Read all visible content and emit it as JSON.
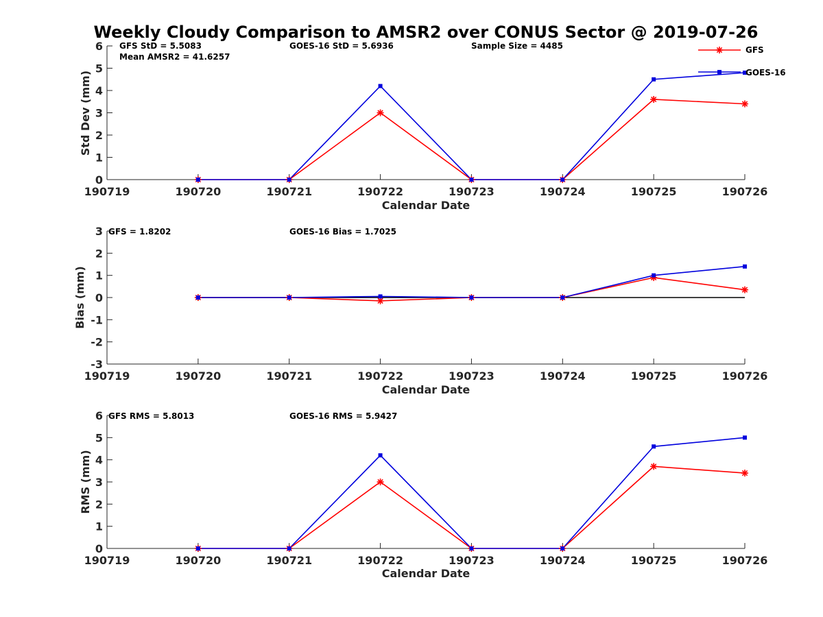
{
  "colors": {
    "gfs": "#ff0000",
    "goes": "#0000dd",
    "zero_line": "#000000",
    "axis": "#262626"
  },
  "chart_data": [
    {
      "type": "line",
      "title": "Weekly Cloudy Comparison to AMSR2 over CONUS Sector @ 2019-07-26",
      "xlabel": "Calendar Date",
      "ylabel": "Std Dev (mm)",
      "categories": [
        "190719",
        "190720",
        "190721",
        "190722",
        "190723",
        "190724",
        "190725",
        "190726"
      ],
      "ylim": [
        0,
        6
      ],
      "yticks": [
        "0",
        "1",
        "2",
        "3",
        "4",
        "5",
        "6"
      ],
      "series": [
        {
          "name": "GFS",
          "marker": "asterisk",
          "values": [
            null,
            0,
            0,
            3.0,
            0,
            0,
            3.6,
            3.4
          ]
        },
        {
          "name": "GOES-16",
          "marker": "square",
          "values": [
            null,
            0,
            0,
            4.2,
            0,
            0,
            4.5,
            4.8
          ]
        }
      ],
      "annotations": [
        "GFS StD = 5.5083",
        "Mean AMSR2 = 41.6257",
        "GOES-16 StD = 5.6936",
        "Sample Size = 4485"
      ],
      "legend": {
        "placement": "top-right",
        "entries": [
          "GFS",
          "GOES-16"
        ]
      }
    },
    {
      "type": "line",
      "xlabel": "Calendar Date",
      "ylabel": "Bias (mm)",
      "categories": [
        "190719",
        "190720",
        "190721",
        "190722",
        "190723",
        "190724",
        "190725",
        "190726"
      ],
      "ylim": [
        -3,
        3
      ],
      "yticks": [
        "-3",
        "-2",
        "-1",
        "0",
        "1",
        "2",
        "3"
      ],
      "zero_line": true,
      "series": [
        {
          "name": "GFS",
          "marker": "asterisk",
          "values": [
            null,
            0,
            0,
            -0.15,
            0,
            0,
            0.9,
            0.35
          ]
        },
        {
          "name": "GOES-16",
          "marker": "square",
          "values": [
            null,
            0,
            0,
            0.05,
            0,
            0,
            1.0,
            1.4
          ]
        }
      ],
      "annotations": [
        "GFS = 1.8202",
        "GOES-16 Bias  = 1.7025"
      ]
    },
    {
      "type": "line",
      "xlabel": "Calendar Date",
      "ylabel": "RMS (mm)",
      "categories": [
        "190719",
        "190720",
        "190721",
        "190722",
        "190723",
        "190724",
        "190725",
        "190726"
      ],
      "ylim": [
        0,
        6
      ],
      "yticks": [
        "0",
        "1",
        "2",
        "3",
        "4",
        "5",
        "6"
      ],
      "series": [
        {
          "name": "GFS",
          "marker": "asterisk",
          "values": [
            null,
            0,
            0,
            3.0,
            0,
            0,
            3.7,
            3.4
          ]
        },
        {
          "name": "GOES-16",
          "marker": "square",
          "values": [
            null,
            0,
            0,
            4.2,
            0,
            0,
            4.6,
            5.0
          ]
        }
      ],
      "annotations": [
        "GFS RMS = 5.8013",
        "GOES-16 RMS = 5.9427"
      ]
    }
  ]
}
